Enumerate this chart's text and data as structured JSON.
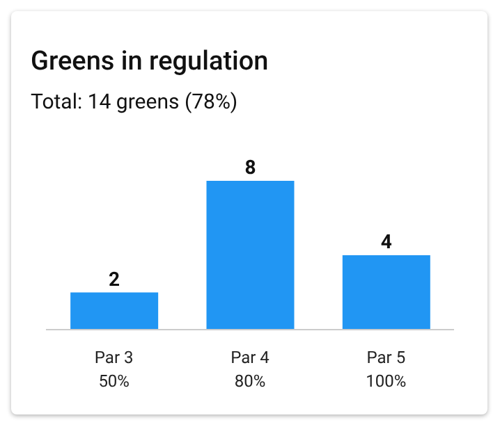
{
  "chart_data": {
    "type": "bar",
    "title": "Greens in regulation",
    "subtitle": "Total: 14 greens (78%)",
    "categories": [
      "Par 3\n50%",
      "Par 4\n80%",
      "Par 5\n100%"
    ],
    "values": [
      2,
      8,
      4
    ],
    "color": "#2196f3",
    "data_labels": true
  }
}
